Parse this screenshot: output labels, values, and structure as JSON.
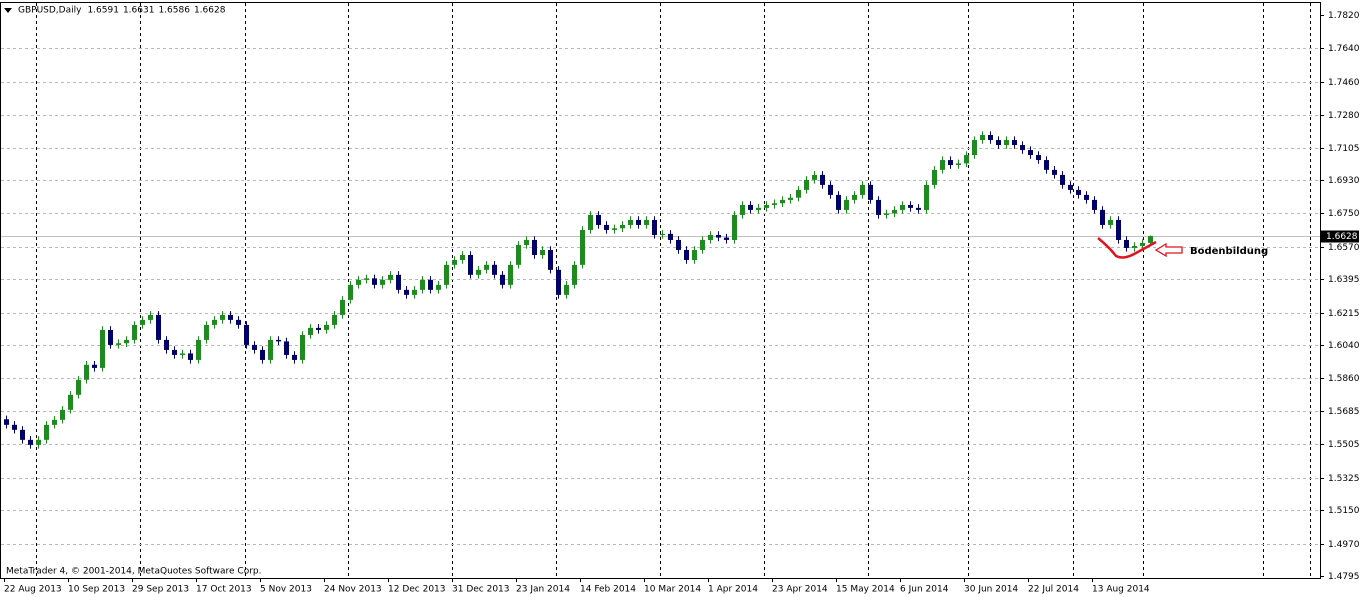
{
  "chart_data": {
    "type": "candlestick",
    "title": "GBPUSD,Daily",
    "footer": "MetaTrader 4, © 2001-2014, MetaQuotes Software Corp.",
    "annotation": "Bodenbildung",
    "up_color": "#1f8a1f",
    "down_color": "#000066",
    "annotation_color": "#e0141e",
    "grid": true,
    "ylim": [
      1.4784,
      1.7885
    ],
    "yticks": [
      {
        "value": 1.782,
        "label": "1.7820"
      },
      {
        "value": 1.764,
        "label": "1.7640"
      },
      {
        "value": 1.746,
        "label": "1.7460"
      },
      {
        "value": 1.728,
        "label": "1.7280"
      },
      1.7105,
      {
        "value": 1.693,
        "label": "1.6930"
      },
      {
        "value": 1.675,
        "label": "1.6750"
      },
      {
        "value": 1.657,
        "label": "1.6570"
      },
      1.6395,
      1.6215,
      {
        "value": 1.604,
        "label": "1.6040"
      },
      {
        "value": 1.586,
        "label": "1.5860"
      },
      1.5685,
      1.5505,
      1.5325,
      {
        "value": 1.515,
        "label": "1.5150"
      },
      {
        "value": 1.497,
        "label": "1.4970"
      },
      1.4795
    ],
    "x_labels": [
      "22 Aug 2013",
      "10 Sep 2013",
      "29 Sep 2013",
      "17 Oct 2013",
      "5 Nov 2013",
      "24 Nov 2013",
      "12 Dec 2013",
      "31 Dec 2013",
      "23 Jan 2014",
      "14 Feb 2014",
      "10 Mar 2014",
      "1 Apr 2014",
      "23 Apr 2014",
      "15 May 2014",
      "6 Jun 2014",
      "30 Jun 2014",
      "22 Jul 2014",
      "13 Aug 2014"
    ],
    "candles": [
      [
        1.564,
        1.566,
        1.559,
        1.561
      ],
      [
        1.561,
        1.563,
        1.5563,
        1.5583
      ],
      [
        1.5583,
        1.5603,
        1.5509,
        1.5529
      ],
      [
        1.5529,
        1.5549,
        1.5482,
        1.5502
      ],
      [
        1.5502,
        1.5549,
        1.5482,
        1.5529
      ],
      [
        1.5529,
        1.563,
        1.5509,
        1.561
      ],
      [
        1.561,
        1.5657,
        1.559,
        1.5637
      ],
      [
        1.5637,
        1.5711,
        1.5617,
        1.5691
      ],
      [
        1.5691,
        1.5792,
        1.5671,
        1.5772
      ],
      [
        1.5772,
        1.5873,
        1.5752,
        1.5853
      ],
      [
        1.5853,
        1.5954,
        1.5833,
        1.5934
      ],
      [
        1.5934,
        1.5954,
        1.5897,
        1.5917
      ],
      [
        1.5917,
        1.6142,
        1.5897,
        1.6122
      ],
      [
        1.6122,
        1.6142,
        1.6021,
        1.6041
      ],
      [
        1.6041,
        1.607,
        1.6021,
        1.605
      ],
      [
        1.605,
        1.6088,
        1.603,
        1.6068
      ],
      [
        1.6068,
        1.6169,
        1.6048,
        1.6149
      ],
      [
        1.6149,
        1.6196,
        1.6129,
        1.6176
      ],
      [
        1.6176,
        1.6223,
        1.6156,
        1.6203
      ],
      [
        1.6203,
        1.6223,
        1.6048,
        1.6068
      ],
      [
        1.6068,
        1.6088,
        1.5994,
        1.6014
      ],
      [
        1.6014,
        1.6034,
        1.5967,
        1.5987
      ],
      [
        1.5987,
        1.6015,
        1.5967,
        1.5995
      ],
      [
        1.5995,
        1.6015,
        1.594,
        1.596
      ],
      [
        1.596,
        1.6088,
        1.594,
        1.6068
      ],
      [
        1.6068,
        1.6169,
        1.6048,
        1.6149
      ],
      [
        1.6149,
        1.6196,
        1.6129,
        1.6176
      ],
      [
        1.6176,
        1.6223,
        1.6156,
        1.6203
      ],
      [
        1.6203,
        1.6223,
        1.6156,
        1.6176
      ],
      [
        1.6176,
        1.6196,
        1.6129,
        1.6149
      ],
      [
        1.6149,
        1.6169,
        1.6021,
        1.6041
      ],
      [
        1.6041,
        1.6061,
        1.5994,
        1.6014
      ],
      [
        1.6014,
        1.6034,
        1.594,
        1.596
      ],
      [
        1.596,
        1.6088,
        1.594,
        1.6068
      ],
      [
        1.6068,
        1.6088,
        1.604,
        1.606
      ],
      [
        1.606,
        1.608,
        1.5967,
        1.5987
      ],
      [
        1.5987,
        1.6007,
        1.594,
        1.596
      ],
      [
        1.596,
        1.6115,
        1.594,
        1.6095
      ],
      [
        1.6095,
        1.6153,
        1.6075,
        1.6133
      ],
      [
        1.6133,
        1.6153,
        1.6102,
        1.6122
      ],
      [
        1.6122,
        1.6169,
        1.6102,
        1.6149
      ],
      [
        1.6149,
        1.6223,
        1.6129,
        1.6203
      ],
      [
        1.6203,
        1.6304,
        1.6183,
        1.6284
      ],
      [
        1.6284,
        1.6385,
        1.6264,
        1.6365
      ],
      [
        1.6365,
        1.6412,
        1.6345,
        1.6392
      ],
      [
        1.6392,
        1.642,
        1.6372,
        1.64
      ],
      [
        1.64,
        1.642,
        1.6345,
        1.6365
      ],
      [
        1.6365,
        1.6412,
        1.6345,
        1.6392
      ],
      [
        1.6392,
        1.6439,
        1.6372,
        1.6419
      ],
      [
        1.6419,
        1.6439,
        1.6318,
        1.6338
      ],
      [
        1.6338,
        1.6358,
        1.6291,
        1.6311
      ],
      [
        1.6311,
        1.6358,
        1.6291,
        1.6338
      ],
      [
        1.6338,
        1.6412,
        1.6318,
        1.6392
      ],
      [
        1.6392,
        1.6412,
        1.6318,
        1.6338
      ],
      [
        1.6338,
        1.6385,
        1.6318,
        1.6365
      ],
      [
        1.6365,
        1.6493,
        1.6345,
        1.6473
      ],
      [
        1.6473,
        1.6519,
        1.6453,
        1.6499
      ],
      [
        1.6499,
        1.6546,
        1.6479,
        1.6526
      ],
      [
        1.6526,
        1.6546,
        1.6399,
        1.6419
      ],
      [
        1.6419,
        1.6466,
        1.6399,
        1.6446
      ],
      [
        1.6446,
        1.6493,
        1.6426,
        1.6473
      ],
      [
        1.6473,
        1.6493,
        1.6399,
        1.6419
      ],
      [
        1.6419,
        1.6439,
        1.6345,
        1.6365
      ],
      [
        1.6365,
        1.6493,
        1.6345,
        1.6473
      ],
      [
        1.6473,
        1.66,
        1.6453,
        1.658
      ],
      [
        1.658,
        1.6627,
        1.656,
        1.6607
      ],
      [
        1.6607,
        1.6627,
        1.6506,
        1.6526
      ],
      [
        1.6526,
        1.6573,
        1.6506,
        1.6553
      ],
      [
        1.6553,
        1.6573,
        1.6426,
        1.6446
      ],
      [
        1.6446,
        1.6466,
        1.6291,
        1.6311
      ],
      [
        1.6311,
        1.6385,
        1.6291,
        1.6365
      ],
      [
        1.6365,
        1.6493,
        1.6345,
        1.6473
      ],
      [
        1.6473,
        1.6681,
        1.6453,
        1.6661
      ],
      [
        1.6661,
        1.6762,
        1.6641,
        1.6742
      ],
      [
        1.6742,
        1.6762,
        1.6668,
        1.6688
      ],
      [
        1.6688,
        1.6708,
        1.6641,
        1.6661
      ],
      [
        1.6661,
        1.669,
        1.6641,
        1.667
      ],
      [
        1.667,
        1.6708,
        1.665,
        1.6688
      ],
      [
        1.6688,
        1.6735,
        1.6668,
        1.6715
      ],
      [
        1.6715,
        1.6735,
        1.6668,
        1.6688
      ],
      [
        1.6688,
        1.6735,
        1.6668,
        1.6715
      ],
      [
        1.6715,
        1.6735,
        1.6614,
        1.6634
      ],
      [
        1.6634,
        1.666,
        1.6614,
        1.664
      ],
      [
        1.664,
        1.666,
        1.6587,
        1.6607
      ],
      [
        1.6607,
        1.6627,
        1.6533,
        1.6553
      ],
      [
        1.6553,
        1.6573,
        1.6479,
        1.6499
      ],
      [
        1.6499,
        1.6573,
        1.6479,
        1.6553
      ],
      [
        1.6553,
        1.6627,
        1.6533,
        1.6607
      ],
      [
        1.6607,
        1.6654,
        1.6587,
        1.6634
      ],
      [
        1.6634,
        1.6654,
        1.66,
        1.662
      ],
      [
        1.662,
        1.664,
        1.6587,
        1.6607
      ],
      [
        1.6607,
        1.6762,
        1.6587,
        1.6742
      ],
      [
        1.6742,
        1.6816,
        1.6722,
        1.6796
      ],
      [
        1.6796,
        1.6816,
        1.6749,
        1.6769
      ],
      [
        1.6769,
        1.68,
        1.6749,
        1.678
      ],
      [
        1.678,
        1.6816,
        1.676,
        1.6796
      ],
      [
        1.6796,
        1.6825,
        1.6776,
        1.6805
      ],
      [
        1.6805,
        1.6843,
        1.6785,
        1.6823
      ],
      [
        1.6823,
        1.6855,
        1.6803,
        1.6835
      ],
      [
        1.6835,
        1.6897,
        1.6815,
        1.6877
      ],
      [
        1.6877,
        1.6951,
        1.6857,
        1.6931
      ],
      [
        1.6931,
        1.6978,
        1.6911,
        1.6958
      ],
      [
        1.6958,
        1.6978,
        1.6884,
        1.6904
      ],
      [
        1.6904,
        1.6924,
        1.683,
        1.685
      ],
      [
        1.685,
        1.687,
        1.6749,
        1.6769
      ],
      [
        1.6769,
        1.6843,
        1.6749,
        1.6823
      ],
      [
        1.6823,
        1.687,
        1.6803,
        1.685
      ],
      [
        1.685,
        1.6924,
        1.683,
        1.6904
      ],
      [
        1.6904,
        1.6924,
        1.6803,
        1.6823
      ],
      [
        1.6823,
        1.6843,
        1.6722,
        1.6742
      ],
      [
        1.6742,
        1.677,
        1.6722,
        1.675
      ],
      [
        1.675,
        1.6789,
        1.673,
        1.6769
      ],
      [
        1.6769,
        1.6816,
        1.6749,
        1.6796
      ],
      [
        1.6796,
        1.6816,
        1.676,
        1.678
      ],
      [
        1.678,
        1.68,
        1.6749,
        1.6769
      ],
      [
        1.6769,
        1.6924,
        1.6749,
        1.6904
      ],
      [
        1.6904,
        1.7005,
        1.6884,
        1.6985
      ],
      [
        1.6985,
        1.7058,
        1.6965,
        1.7038
      ],
      [
        1.7038,
        1.7058,
        1.6991,
        1.7011
      ],
      [
        1.7011,
        1.704,
        1.6991,
        1.702
      ],
      [
        1.702,
        1.7085,
        1.7,
        1.7065
      ],
      [
        1.7065,
        1.7166,
        1.7045,
        1.7146
      ],
      [
        1.7146,
        1.7193,
        1.7126,
        1.7173
      ],
      [
        1.7173,
        1.7193,
        1.7126,
        1.7146
      ],
      [
        1.7146,
        1.7166,
        1.7099,
        1.7119
      ],
      [
        1.7119,
        1.7166,
        1.7099,
        1.7146
      ],
      [
        1.7146,
        1.7166,
        1.7099,
        1.7119
      ],
      [
        1.7119,
        1.7139,
        1.7072,
        1.7092
      ],
      [
        1.7092,
        1.7112,
        1.7045,
        1.7065
      ],
      [
        1.7065,
        1.7085,
        1.7018,
        1.7038
      ],
      [
        1.7038,
        1.7058,
        1.6965,
        1.6985
      ],
      [
        1.6985,
        1.7005,
        1.6938,
        1.6958
      ],
      [
        1.6958,
        1.6978,
        1.6884,
        1.6904
      ],
      [
        1.6904,
        1.6924,
        1.6857,
        1.6877
      ],
      [
        1.6877,
        1.6897,
        1.683,
        1.685
      ],
      [
        1.685,
        1.687,
        1.6803,
        1.6823
      ],
      [
        1.6823,
        1.6843,
        1.6749,
        1.6769
      ],
      [
        1.6769,
        1.6789,
        1.6668,
        1.6688
      ],
      [
        1.6688,
        1.6735,
        1.6668,
        1.6715
      ],
      [
        1.6715,
        1.6735,
        1.6587,
        1.6607
      ],
      [
        1.6607,
        1.6627,
        1.6544,
        1.6564
      ],
      [
        1.6564,
        1.6595,
        1.6544,
        1.6575
      ],
      [
        1.6575,
        1.6611,
        1.6555,
        1.6591
      ],
      [
        1.6591,
        1.6631,
        1.6586,
        1.6628
      ]
    ]
  }
}
